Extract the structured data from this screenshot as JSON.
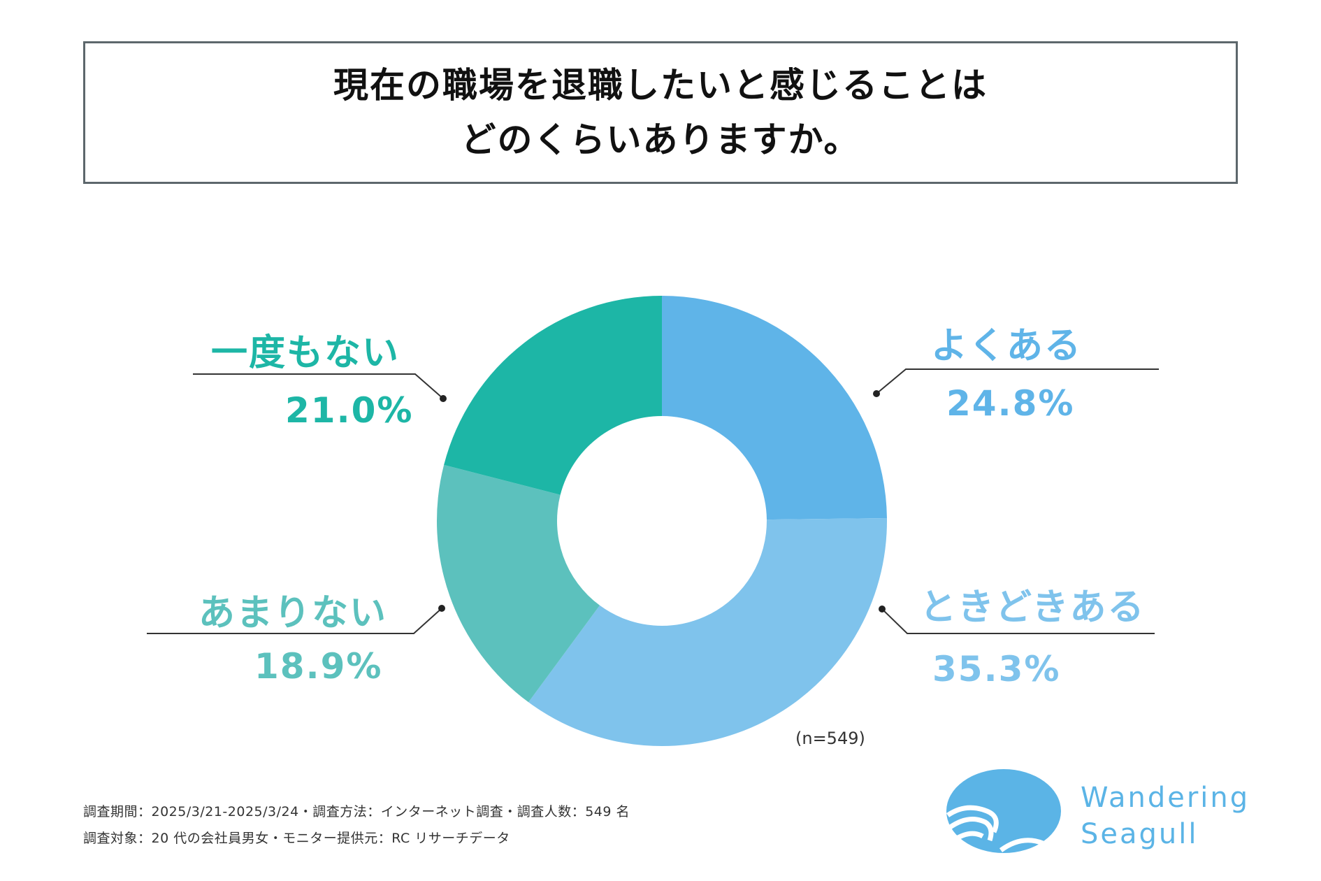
{
  "title": {
    "line1": "現在の職場を退職したいと感じることは",
    "line2": "どのくらいありますか。"
  },
  "chart_data": {
    "type": "pie",
    "variant": "donut",
    "categories": [
      "よくある",
      "ときどきある",
      "あまりない",
      "一度もない"
    ],
    "values": [
      24.8,
      35.3,
      18.9,
      21.0
    ],
    "value_labels": [
      "24.8%",
      "35.3%",
      "18.9%",
      "21.0%"
    ],
    "colors": [
      "#5fb4e8",
      "#7fc3ec",
      "#5cc1bd",
      "#1db6a6"
    ],
    "start": "12 o'clock, clockwise",
    "sample_note": "(n=549)"
  },
  "footnotes": [
    "調査期間：2025/3/21-2025/3/24・調査方法：インターネット調査・調査人数：549 名",
    "調査対象：20 代の会社員男女・モニター提供元：RC リサーチデータ"
  ],
  "logo": {
    "icon": "seagull-wave-logo",
    "line1": "Wandering",
    "line2": "Seagull",
    "color": "#5bb4e6"
  }
}
